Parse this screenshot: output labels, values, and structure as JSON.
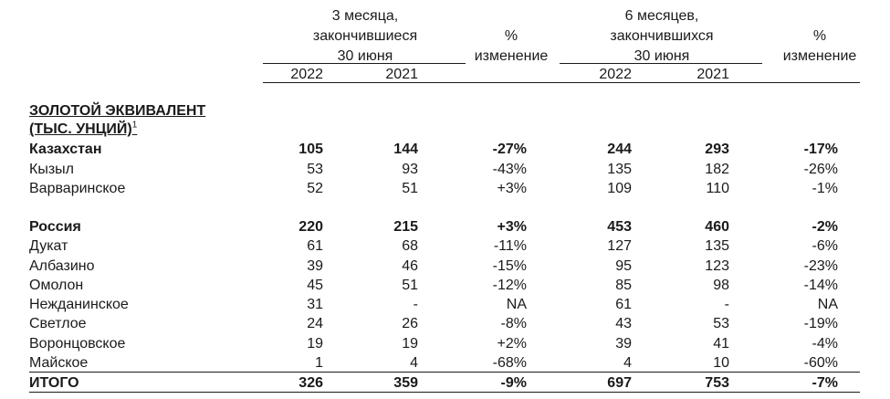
{
  "header": {
    "period1_title": [
      "3 месяца,",
      "закончившиеся",
      "30 июня"
    ],
    "period2_title": [
      "6 месяцев,",
      "закончившихся",
      "30 июня"
    ],
    "pct_change_1": [
      "%",
      "изменение"
    ],
    "pct_change_2": [
      "%",
      "изменение"
    ],
    "years": [
      "2022",
      "2021",
      "2022",
      "2021"
    ]
  },
  "section": {
    "title_line1": "ЗОЛОТОЙ ЭКВИВАЛЕНТ",
    "title_line2": "(ТЫС. УНЦИЙ)",
    "footnote": "1"
  },
  "rows": [
    {
      "label": "Казахстан",
      "v": [
        "105",
        "144",
        "-27%",
        "244",
        "293",
        "-17%"
      ]
    },
    {
      "label": "Кызыл",
      "v": [
        "53",
        "93",
        "-43%",
        "135",
        "182",
        "-26%"
      ]
    },
    {
      "label": "Варваринское",
      "v": [
        "52",
        "51",
        "+3%",
        "109",
        "110",
        "-1%"
      ]
    },
    {
      "label": "Россия",
      "v": [
        "220",
        "215",
        "+3%",
        "453",
        "460",
        "-2%"
      ]
    },
    {
      "label": "Дукат",
      "v": [
        "61",
        "68",
        "-11%",
        "127",
        "135",
        "-6%"
      ]
    },
    {
      "label": "Албазино",
      "v": [
        "39",
        "46",
        "-15%",
        "95",
        "123",
        "-23%"
      ]
    },
    {
      "label": "Омолон",
      "v": [
        "45",
        "51",
        "-12%",
        "85",
        "98",
        "-14%"
      ]
    },
    {
      "label": "Нежданинское",
      "v": [
        "31",
        "-",
        "NA",
        "61",
        "-",
        "NA"
      ]
    },
    {
      "label": "Светлое",
      "v": [
        "24",
        "26",
        "-8%",
        "43",
        "53",
        "-19%"
      ]
    },
    {
      "label": "Воронцовское",
      "v": [
        "19",
        "19",
        "+2%",
        "39",
        "41",
        "-4%"
      ]
    },
    {
      "label": "Майское",
      "v": [
        "1",
        "4",
        "-68%",
        "4",
        "10",
        "-60%"
      ]
    },
    {
      "label": "ИТОГО",
      "v": [
        "326",
        "359",
        "-9%",
        "697",
        "753",
        "-7%"
      ]
    }
  ]
}
